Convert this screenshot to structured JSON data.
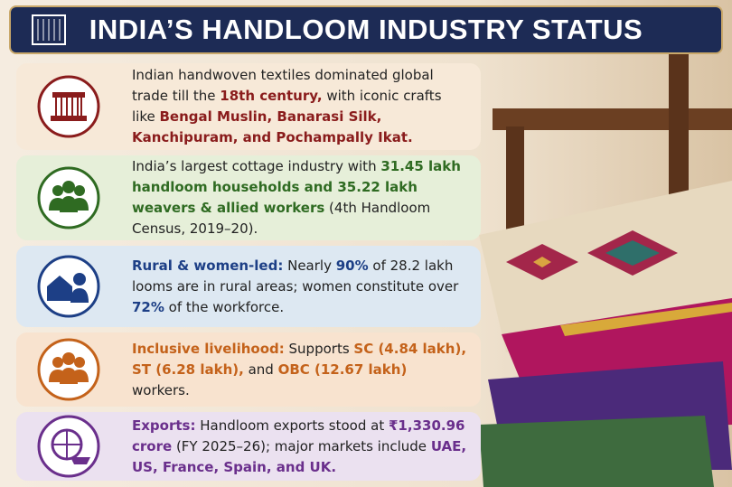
{
  "header": {
    "title": "INDIA’S HANDLOOM INDUSTRY STATUS"
  },
  "cards": [
    {
      "segments": [
        "Indian handwoven textiles dominated global trade till the ",
        "18th century,",
        " with iconic crafts like ",
        "Bengal Muslin, Banarasi Silk, Kanchipuram, and Pochampally Ikat."
      ]
    },
    {
      "segments": [
        "India’s largest cottage industry with ",
        "31.45 lakh handloom households",
        " and ",
        "35.22 lakh weavers & allied workers",
        " (4th Handloom Census, 2019–20)."
      ]
    },
    {
      "segments": [
        "Rural & women-led:",
        " Nearly ",
        "90%",
        " of 28.2 lakh looms are in rural areas; women constitute over ",
        "72%",
        " of the workforce."
      ]
    },
    {
      "segments": [
        "Inclusive livelihood:",
        " Supports ",
        "SC (4.84 lakh), ST (6.28 lakh),",
        " and ",
        "OBC (12.67 lakh)",
        " workers."
      ]
    },
    {
      "segments": [
        "Exports:",
        " Handloom exports stood at ",
        "₹1,330.96 crore",
        " (FY 2025–26); major markets include ",
        "UAE, US, France, Spain, and UK."
      ]
    }
  ]
}
